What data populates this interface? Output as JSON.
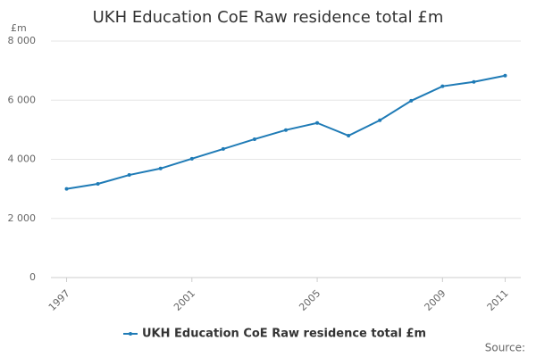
{
  "chart_data": {
    "type": "line",
    "title": "UKH Education CoE Raw residence total £m",
    "y_label": "£m",
    "x": [
      1997,
      1998,
      1999,
      2000,
      2001,
      2002,
      2003,
      2004,
      2005,
      2006,
      2007,
      2008,
      2009,
      2010,
      2011
    ],
    "series": [
      {
        "name": "UKH Education CoE Raw residence total £m",
        "color": "#1f7bb6",
        "values": [
          3000,
          3170,
          3470,
          3690,
          4020,
          4350,
          4680,
          4990,
          5230,
          4800,
          5320,
          5980,
          6470,
          6620,
          6830
        ]
      }
    ],
    "xlim": [
      1996.5,
      2011.5
    ],
    "xticks": [
      1997,
      2001,
      2005,
      2009,
      2011
    ],
    "ylim": [
      0,
      8000
    ],
    "yticks": [
      0,
      {
        "value": 2000,
        "label": "2 000"
      },
      {
        "value": 4000,
        "label": "4 000"
      },
      {
        "value": 6000,
        "label": "6 000"
      },
      {
        "value": 8000,
        "label": "8 000"
      }
    ],
    "grid": true,
    "legend": "bottom",
    "source": "Source:"
  }
}
